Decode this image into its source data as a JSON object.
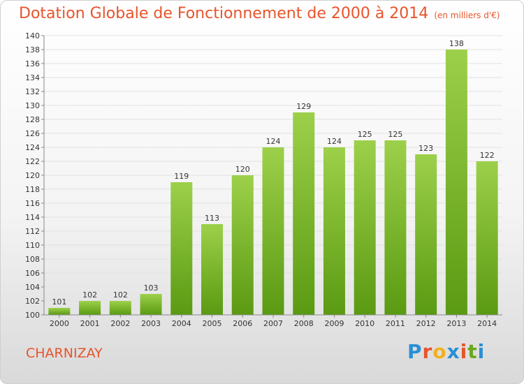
{
  "title": "Dotation Globale de Fonctionnement de 2000 à 2014",
  "unit_note": "(en milliers d'€)",
  "commune": "CHARNIZAY",
  "logo": {
    "text": "Proxiti",
    "letters": [
      "P",
      "r",
      "o",
      "x",
      "i",
      "t",
      "i"
    ],
    "colors": [
      "#2a8fd4",
      "#e8542b",
      "#f2b01e",
      "#2a8fd4",
      "#e8542b",
      "#69a81f",
      "#2a8fd4"
    ]
  },
  "colors": {
    "bar_top": "#9dd04a",
    "bar_bottom": "#5a9a12",
    "title": "#e8542b",
    "grid": "#e2e2e2"
  },
  "chart_data": {
    "type": "bar",
    "title": "Dotation Globale de Fonctionnement de 2000 à 2014",
    "subtitle": "(en milliers d'€)",
    "xlabel": "",
    "ylabel": "",
    "ylim": [
      100,
      140
    ],
    "ytick_step": 2,
    "yticks": [
      "100",
      "102",
      "104",
      "106",
      "108",
      "110",
      "112",
      "114",
      "116",
      "118",
      "120",
      "122",
      "124",
      "126",
      "128",
      "130",
      "132",
      "134",
      "136",
      "138",
      "140"
    ],
    "grid": true,
    "categories": [
      "2000",
      "2001",
      "2002",
      "2003",
      "2004",
      "2005",
      "2006",
      "2007",
      "2008",
      "2009",
      "2010",
      "2011",
      "2012",
      "2013",
      "2014"
    ],
    "values": [
      101,
      102,
      102,
      103,
      119,
      113,
      120,
      124,
      129,
      124,
      125,
      125,
      123,
      138,
      122
    ],
    "labels": [
      "101",
      "102",
      "102",
      "103",
      "119",
      "113",
      "120",
      "124",
      "129",
      "124",
      "125",
      "125",
      "123",
      "138",
      "122"
    ]
  }
}
